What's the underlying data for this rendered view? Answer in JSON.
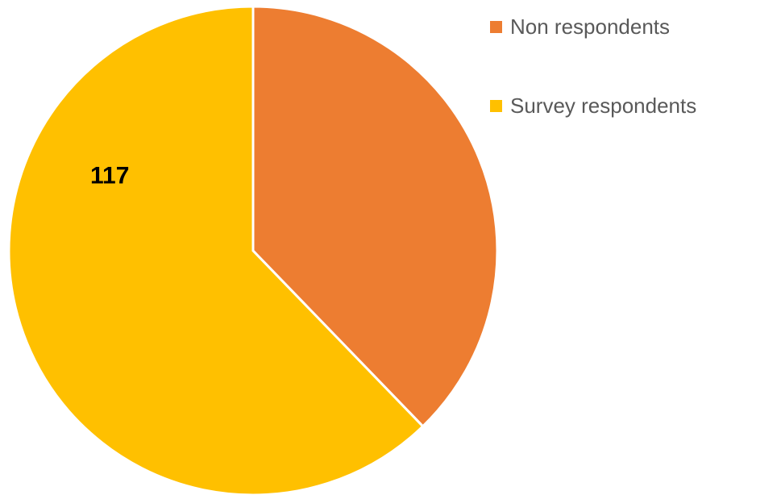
{
  "chart_data": {
    "type": "pie",
    "title": "",
    "slices": [
      {
        "name": "Non respondents",
        "value": 71,
        "color": "#ED7D31",
        "label": ""
      },
      {
        "name": "Survey respondents",
        "value": 117,
        "color": "#FFC000",
        "label": "117"
      }
    ],
    "legend_position": "right"
  }
}
